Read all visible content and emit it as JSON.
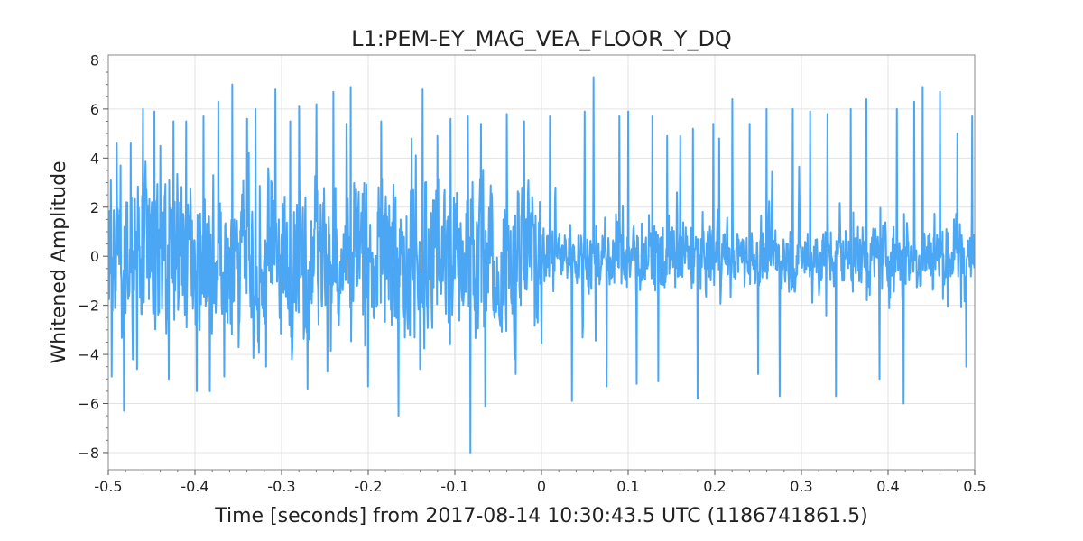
{
  "chart_data": {
    "type": "line",
    "title": "L1:PEM-EY_MAG_VEA_FLOOR_Y_DQ",
    "xlabel": "Time [seconds] from 2017-08-14 10:30:43.5 UTC (1186741861.5)",
    "ylabel": "Whitened Amplitude",
    "xlim": [
      -0.5,
      0.5
    ],
    "ylim": [
      -8.7,
      8.2
    ],
    "x_ticks": [
      -0.5,
      -0.4,
      -0.3,
      -0.2,
      -0.1,
      0,
      0.1,
      0.2,
      0.3,
      0.4,
      0.5
    ],
    "x_tick_labels": [
      "-0.5",
      "-0.4",
      "-0.3",
      "-0.2",
      "-0.1",
      "0",
      "0.1",
      "0.2",
      "0.3",
      "0.4",
      "0.5"
    ],
    "y_ticks": [
      -8,
      -6,
      -4,
      -2,
      0,
      2,
      4,
      6,
      8
    ],
    "y_tick_labels": [
      "−8",
      "−6",
      "−4",
      "−2",
      "0",
      "2",
      "4",
      "6",
      "8"
    ],
    "grid": true,
    "series": [
      {
        "color": "#4ba6f4",
        "sample_rate": 2048,
        "x_start": -0.5,
        "x_end": 0.5,
        "extremes": [
          {
            "x": -0.497,
            "y": 3.1
          },
          {
            "x": -0.496,
            "y": -4.9
          },
          {
            "x": -0.49,
            "y": 4.6
          },
          {
            "x": -0.486,
            "y": 3.7
          },
          {
            "x": -0.482,
            "y": -6.3
          },
          {
            "x": -0.474,
            "y": 4.6
          },
          {
            "x": -0.467,
            "y": -4.6
          },
          {
            "x": -0.46,
            "y": 6.0
          },
          {
            "x": -0.447,
            "y": 5.9
          },
          {
            "x": -0.44,
            "y": 4.5
          },
          {
            "x": -0.43,
            "y": -5.0
          },
          {
            "x": -0.425,
            "y": 5.5
          },
          {
            "x": -0.41,
            "y": 5.5
          },
          {
            "x": -0.398,
            "y": -5.5
          },
          {
            "x": -0.39,
            "y": 5.7
          },
          {
            "x": -0.383,
            "y": -5.5
          },
          {
            "x": -0.373,
            "y": 6.3
          },
          {
            "x": -0.366,
            "y": -4.9
          },
          {
            "x": -0.357,
            "y": 7.0
          },
          {
            "x": -0.34,
            "y": 5.6
          },
          {
            "x": -0.33,
            "y": 6.0
          },
          {
            "x": -0.318,
            "y": -4.5
          },
          {
            "x": -0.307,
            "y": 6.8
          },
          {
            "x": -0.29,
            "y": 5.5
          },
          {
            "x": -0.28,
            "y": 6.1
          },
          {
            "x": -0.27,
            "y": -5.4
          },
          {
            "x": -0.26,
            "y": 6.2
          },
          {
            "x": -0.247,
            "y": -4.7
          },
          {
            "x": -0.24,
            "y": 6.7
          },
          {
            "x": -0.225,
            "y": 5.4
          },
          {
            "x": -0.22,
            "y": 6.9
          },
          {
            "x": -0.2,
            "y": -5.3
          },
          {
            "x": -0.185,
            "y": 5.5
          },
          {
            "x": -0.165,
            "y": -6.5
          },
          {
            "x": -0.15,
            "y": 4.8
          },
          {
            "x": -0.14,
            "y": -4.6
          },
          {
            "x": -0.137,
            "y": 6.8
          },
          {
            "x": -0.12,
            "y": 4.9
          },
          {
            "x": -0.105,
            "y": 5.6
          },
          {
            "x": -0.085,
            "y": 5.7
          },
          {
            "x": -0.082,
            "y": -8.0
          },
          {
            "x": -0.07,
            "y": 5.4
          },
          {
            "x": -0.065,
            "y": -6.1
          },
          {
            "x": -0.04,
            "y": 5.8
          },
          {
            "x": -0.03,
            "y": -4.8
          },
          {
            "x": -0.02,
            "y": 5.5
          },
          {
            "x": 0.01,
            "y": 5.7
          },
          {
            "x": 0.035,
            "y": -5.9
          },
          {
            "x": 0.05,
            "y": 5.9
          },
          {
            "x": 0.06,
            "y": 7.3
          },
          {
            "x": 0.075,
            "y": -5.3
          },
          {
            "x": 0.09,
            "y": 5.7
          },
          {
            "x": 0.1,
            "y": 5.9
          },
          {
            "x": 0.11,
            "y": -5.2
          },
          {
            "x": 0.128,
            "y": 5.7
          },
          {
            "x": 0.135,
            "y": -5.1
          },
          {
            "x": 0.145,
            "y": 4.9
          },
          {
            "x": 0.16,
            "y": 4.9
          },
          {
            "x": 0.175,
            "y": 5.2
          },
          {
            "x": 0.18,
            "y": -5.8
          },
          {
            "x": 0.198,
            "y": 5.4
          },
          {
            "x": 0.205,
            "y": 4.8
          },
          {
            "x": 0.22,
            "y": 6.4
          },
          {
            "x": 0.24,
            "y": 5.4
          },
          {
            "x": 0.25,
            "y": -4.8
          },
          {
            "x": 0.26,
            "y": 6.0
          },
          {
            "x": 0.275,
            "y": -5.7
          },
          {
            "x": 0.29,
            "y": 6.0
          },
          {
            "x": 0.31,
            "y": 5.9
          },
          {
            "x": 0.33,
            "y": 5.8
          },
          {
            "x": 0.34,
            "y": -5.7
          },
          {
            "x": 0.357,
            "y": 6.0
          },
          {
            "x": 0.375,
            "y": 6.4
          },
          {
            "x": 0.39,
            "y": -5.0
          },
          {
            "x": 0.41,
            "y": 6.0
          },
          {
            "x": 0.418,
            "y": -6.0
          },
          {
            "x": 0.43,
            "y": 6.3
          },
          {
            "x": 0.44,
            "y": 6.9
          },
          {
            "x": 0.46,
            "y": 6.7
          },
          {
            "x": 0.48,
            "y": 5.0
          },
          {
            "x": 0.49,
            "y": -4.5
          },
          {
            "x": 0.497,
            "y": 5.7
          }
        ]
      }
    ]
  }
}
